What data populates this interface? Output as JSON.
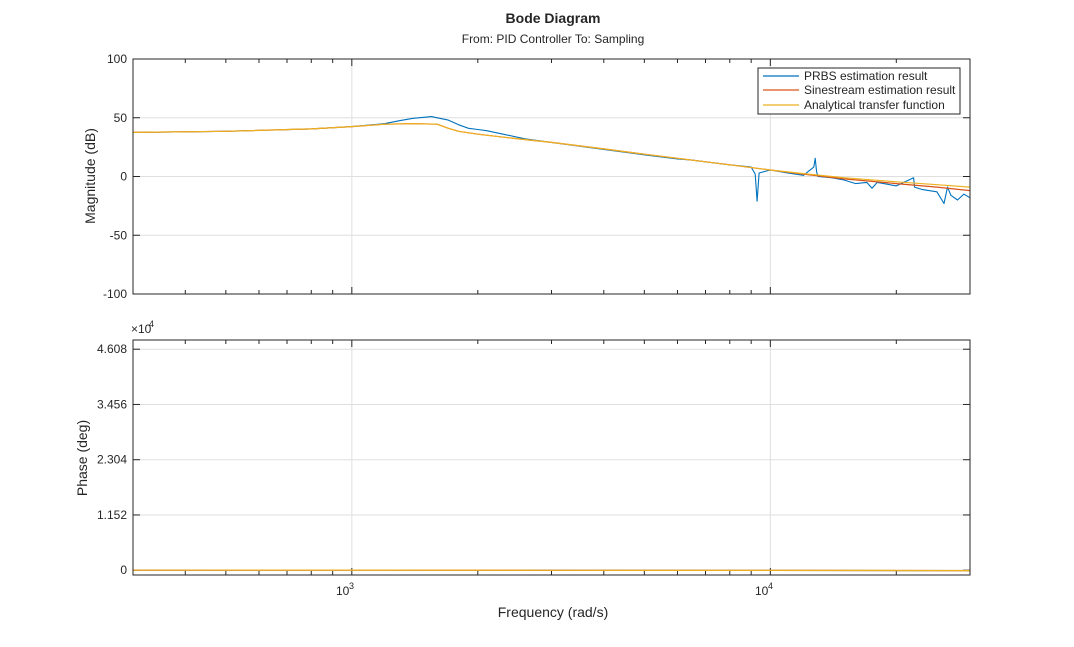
{
  "chart_data": [
    {
      "type": "line",
      "title": "Bode Diagram",
      "subtitle": "From: PID Controller  To: Sampling",
      "xlabel": "Frequency (rad/s)",
      "ylabel": "Magnitude (dB)",
      "xscale": "log",
      "xlim": [
        300,
        30000
      ],
      "ylim": [
        -100,
        100
      ],
      "yticks": [
        -100,
        -50,
        0,
        50,
        100
      ],
      "xtick_labels": [
        "10",
        "3",
        "10",
        "4"
      ],
      "grid": true,
      "legend_position": "top-right",
      "series": [
        {
          "name": "PRBS estimation result",
          "color": "#0072BD",
          "x": [
            300,
            500,
            800,
            1000,
            1200,
            1300,
            1400,
            1500,
            1550,
            1600,
            1700,
            1800,
            1900,
            2000,
            2100,
            2300,
            2600,
            3000,
            4000,
            5000,
            6000,
            6500,
            7000,
            8000,
            9000,
            9200,
            9300,
            9400,
            10000,
            11000,
            12000,
            12700,
            12800,
            12900,
            13000,
            14000,
            15000,
            16000,
            17000,
            17500,
            18000,
            20000,
            22000,
            22100,
            23000,
            25000,
            26000,
            26500,
            27000,
            28000,
            29000,
            30000
          ],
          "y": [
            37.5,
            38.5,
            40.5,
            42.5,
            45,
            47.5,
            49.5,
            50.5,
            51,
            50,
            48,
            44,
            41,
            40,
            39,
            36,
            32,
            29,
            23,
            18.5,
            15,
            14,
            12.5,
            10,
            8,
            2,
            -21,
            3,
            5.5,
            3,
            1,
            8,
            15.5,
            4,
            0,
            -1,
            -3,
            -6,
            -5,
            -10,
            -5,
            -8,
            -1,
            -9,
            -11,
            -13,
            -23,
            -9,
            -16,
            -20,
            -15,
            -18
          ]
        },
        {
          "name": "Sinestream estimation result",
          "color": "#D95319",
          "x": [
            300,
            500,
            800,
            1000,
            1200,
            1400,
            1600,
            1700,
            1800,
            2000,
            2500,
            3000,
            4000,
            5000,
            6000,
            7000,
            8000,
            10000,
            12000,
            15000,
            20000,
            25000,
            30000
          ],
          "y": [
            37.5,
            38.5,
            40.5,
            42.5,
            44.5,
            45,
            44.5,
            41,
            38.5,
            36,
            32,
            29,
            23.5,
            19,
            15.5,
            12.5,
            10,
            5.5,
            2,
            -2,
            -6,
            -9,
            -12
          ]
        },
        {
          "name": "Analytical transfer function",
          "color": "#EDB120",
          "x": [
            300,
            500,
            800,
            1000,
            1200,
            1400,
            1600,
            1700,
            1800,
            2000,
            2500,
            3000,
            4000,
            5000,
            6000,
            7000,
            8000,
            10000,
            12000,
            15000,
            20000,
            25000,
            30000
          ],
          "y": [
            37.5,
            38.5,
            40.5,
            42.5,
            44.5,
            45,
            44.5,
            41,
            38.5,
            36,
            32,
            29,
            23.5,
            19,
            15.5,
            12.5,
            10,
            5.5,
            2.5,
            -1,
            -4.5,
            -7,
            -9
          ]
        }
      ]
    },
    {
      "type": "line",
      "xlabel": "Frequency (rad/s)",
      "ylabel": "Phase (deg)",
      "xscale": "log",
      "xlim": [
        300,
        30000
      ],
      "ylim": [
        -1000,
        48000
      ],
      "yticks": [
        0,
        11520,
        23040,
        34560,
        46080
      ],
      "ytick_labels": [
        "0",
        "1.152",
        "2.304",
        "3.456",
        "4.608"
      ],
      "y_exponent_label": "×10",
      "y_exponent_power": "4",
      "grid": true,
      "series": [
        {
          "name": "PRBS estimation result",
          "color": "#0072BD",
          "x": [
            300,
            1000,
            3000,
            10000,
            30000
          ],
          "y": [
            0,
            20,
            -30,
            -40,
            -80
          ]
        },
        {
          "name": "Sinestream estimation result",
          "color": "#D95319",
          "x": [
            300,
            1000,
            3000,
            10000,
            30000
          ],
          "y": [
            0,
            20,
            -30,
            -40,
            -80
          ]
        },
        {
          "name": "Analytical transfer function",
          "color": "#EDB120",
          "x": [
            300,
            1000,
            3000,
            10000,
            30000
          ],
          "y": [
            0,
            20,
            -30,
            -40,
            -80
          ]
        }
      ]
    }
  ]
}
